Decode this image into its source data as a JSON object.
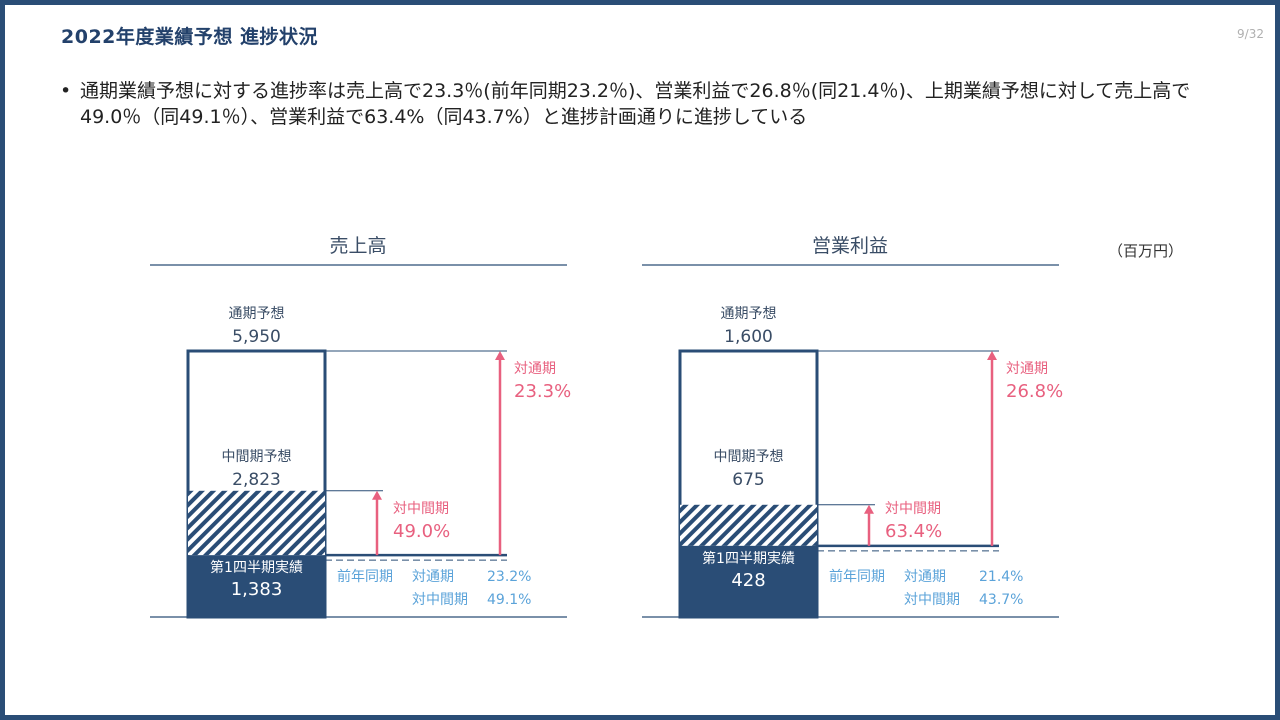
{
  "slide": {
    "title": "2022年度業績予想 進捗状況",
    "page": "9/32",
    "bullet": "通期業績予想に対する進捗率は売上高で23.3％(前年同期23.2％)、営業利益で26.8％(同21.4％)、上期業績予想に対して売上高で49.0％（同49.1％）、営業利益で63.4%（同43.7%）と進捗計画通りに進捗している",
    "unit": "（百万円）"
  },
  "colors": {
    "navy": "#2a4d76",
    "pink": "#e8607f",
    "lightblue": "#5ba3d9",
    "text": "#3a4d66"
  },
  "chart_data": [
    {
      "type": "bar",
      "title": "売上高",
      "annual_label": "通期予想",
      "annual_value": 5950,
      "annual_text": "5,950",
      "half_label": "中間期予想",
      "half_value": 2823,
      "half_text": "2,823",
      "q1_label": "第1四半期実績",
      "q1_value": 1383,
      "q1_text": "1,383",
      "pct_annual_label": "対通期",
      "pct_annual": "23.3%",
      "pct_half_label": "対中間期",
      "pct_half": "49.0%",
      "prior_label": "前年同期",
      "prior_annual_label": "対通期",
      "prior_annual": "23.2%",
      "prior_half_label": "対中間期",
      "prior_half": "49.1%"
    },
    {
      "type": "bar",
      "title": "営業利益",
      "annual_label": "通期予想",
      "annual_value": 1600,
      "annual_text": "1,600",
      "half_label": "中間期予想",
      "half_value": 675,
      "half_text": "675",
      "q1_label": "第1四半期実績",
      "q1_value": 428,
      "q1_text": "428",
      "pct_annual_label": "対通期",
      "pct_annual": "26.8%",
      "pct_half_label": "対中間期",
      "pct_half": "63.4%",
      "prior_label": "前年同期",
      "prior_annual_label": "対通期",
      "prior_annual": "21.4%",
      "prior_half_label": "対中間期",
      "prior_half": "43.7%"
    }
  ]
}
